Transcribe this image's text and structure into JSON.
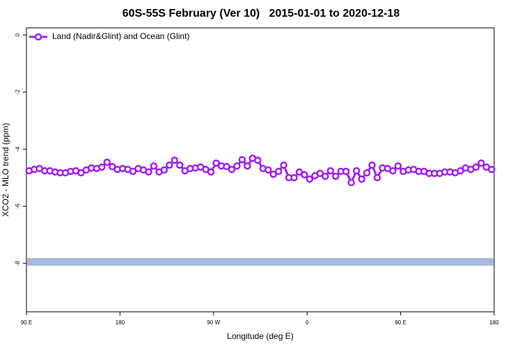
{
  "chart_data": {
    "type": "line",
    "title": "60S-55S February (Ver 10)   2015-01-01 to 2020-12-18",
    "x_label": "Longitude (deg E)",
    "y_label": "XCO2 - MLO trend (ppm)",
    "xlim": [
      90,
      540
    ],
    "xticks": [
      {
        "value": 90,
        "label": "90 E"
      },
      {
        "value": 180,
        "label": "180"
      },
      {
        "value": 270,
        "label": "90 W"
      },
      {
        "value": 360,
        "label": "0"
      },
      {
        "value": 450,
        "label": "90 E"
      },
      {
        "value": 540,
        "label": "180"
      }
    ],
    "ylim": [
      -9.7,
      0.25
    ],
    "yticks": [
      0,
      -2,
      -4,
      -6,
      -8
    ],
    "legend": "top-left",
    "reference_band": {
      "value": -7.95,
      "color": "#a5b9de"
    },
    "x": [
      92.5,
      97.5,
      102.5,
      107.5,
      112.5,
      117.5,
      122.5,
      127.5,
      132.5,
      137.5,
      142.5,
      147.5,
      152.5,
      157.5,
      162.5,
      167.5,
      172.5,
      177.5,
      182.5,
      187.5,
      192.5,
      197.5,
      202.5,
      207.5,
      212.5,
      217.5,
      222.5,
      227.5,
      232.5,
      237.5,
      242.5,
      247.5,
      252.5,
      257.5,
      262.5,
      267.5,
      272.5,
      277.5,
      282.5,
      287.5,
      292.5,
      297.5,
      302.5,
      307.5,
      312.5,
      317.5,
      322.5,
      327.5,
      332.5,
      337.5,
      342.5,
      347.5,
      352.5,
      357.5,
      362.5,
      367.5,
      372.5,
      377.5,
      382.5,
      387.5,
      392.5,
      397.5,
      402.5,
      407.5,
      412.5,
      417.5,
      422.5,
      427.5,
      432.5,
      437.5,
      442.5,
      447.5,
      452.5,
      457.5,
      462.5,
      467.5,
      472.5,
      477.5,
      482.5,
      487.5,
      492.5,
      497.5,
      502.5,
      507.5,
      512.5,
      517.5,
      522.5,
      527.5,
      532.5,
      537.5
    ],
    "series": [
      {
        "name": "Land (Nadir&Glint) and Ocean (Glint)",
        "color": "#a020f0",
        "values": [
          -4.76,
          -4.71,
          -4.68,
          -4.76,
          -4.76,
          -4.8,
          -4.83,
          -4.83,
          -4.78,
          -4.76,
          -4.83,
          -4.73,
          -4.66,
          -4.68,
          -4.63,
          -4.46,
          -4.61,
          -4.71,
          -4.68,
          -4.71,
          -4.78,
          -4.68,
          -4.73,
          -4.8,
          -4.59,
          -4.8,
          -4.73,
          -4.56,
          -4.39,
          -4.56,
          -4.76,
          -4.68,
          -4.66,
          -4.63,
          -4.71,
          -4.8,
          -4.49,
          -4.59,
          -4.61,
          -4.71,
          -4.59,
          -4.37,
          -4.59,
          -4.32,
          -4.39,
          -4.68,
          -4.73,
          -4.88,
          -4.78,
          -4.56,
          -5.0,
          -5.0,
          -4.8,
          -4.9,
          -5.05,
          -4.93,
          -4.85,
          -4.95,
          -4.76,
          -4.95,
          -4.78,
          -4.78,
          -5.17,
          -4.76,
          -5.05,
          -4.83,
          -4.56,
          -5.0,
          -4.66,
          -4.68,
          -4.76,
          -4.59,
          -4.78,
          -4.73,
          -4.71,
          -4.78,
          -4.78,
          -4.85,
          -4.85,
          -4.85,
          -4.8,
          -4.8,
          -4.83,
          -4.76,
          -4.66,
          -4.71,
          -4.63,
          -4.49,
          -4.63,
          -4.71
        ]
      }
    ]
  }
}
